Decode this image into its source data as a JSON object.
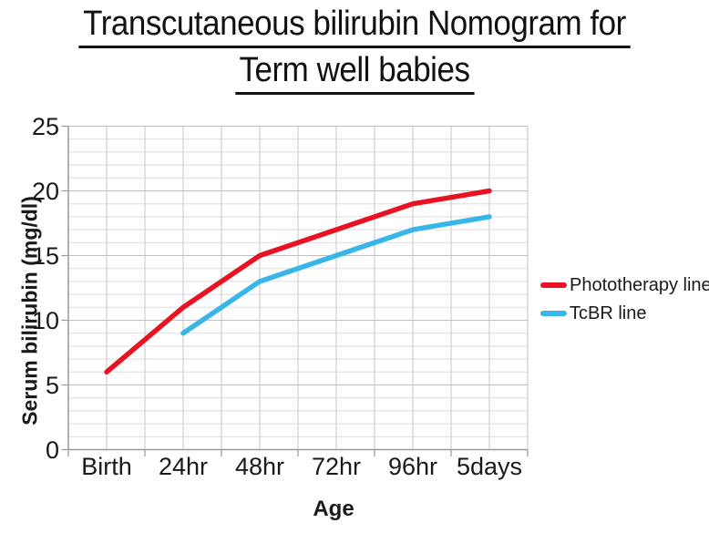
{
  "title": {
    "line1": "Transcutaneous bilirubin Nomogram for",
    "line2": "Term well babies"
  },
  "chart_data": {
    "type": "line",
    "title": "Transcutaneous bilirubin Nomogram for Term well babies",
    "categories": [
      "Birth",
      "24hr",
      "48hr",
      "72hr",
      "96hr",
      "5days"
    ],
    "series": [
      {
        "name": "Phototherapy line",
        "color": "#e81222",
        "values": [
          6,
          11,
          15,
          17,
          19,
          20
        ]
      },
      {
        "name": "TcBR line",
        "color": "#39b6e8",
        "values": [
          null,
          9,
          13,
          15,
          17,
          18
        ]
      }
    ],
    "xlabel": "Age",
    "ylabel": "Serum bilirubin (mg/dl)",
    "ylim": [
      0,
      25
    ],
    "ytick_step": 5,
    "minor_grid_step": 1,
    "grid": true,
    "legend_position": "right"
  },
  "colors": {
    "minor_grid": "#dedede",
    "major_grid": "#c1c1c1",
    "vertical_grid": "#c6c6c6",
    "axis_line": "#9a9a9a",
    "text": "#1a1a1a"
  }
}
